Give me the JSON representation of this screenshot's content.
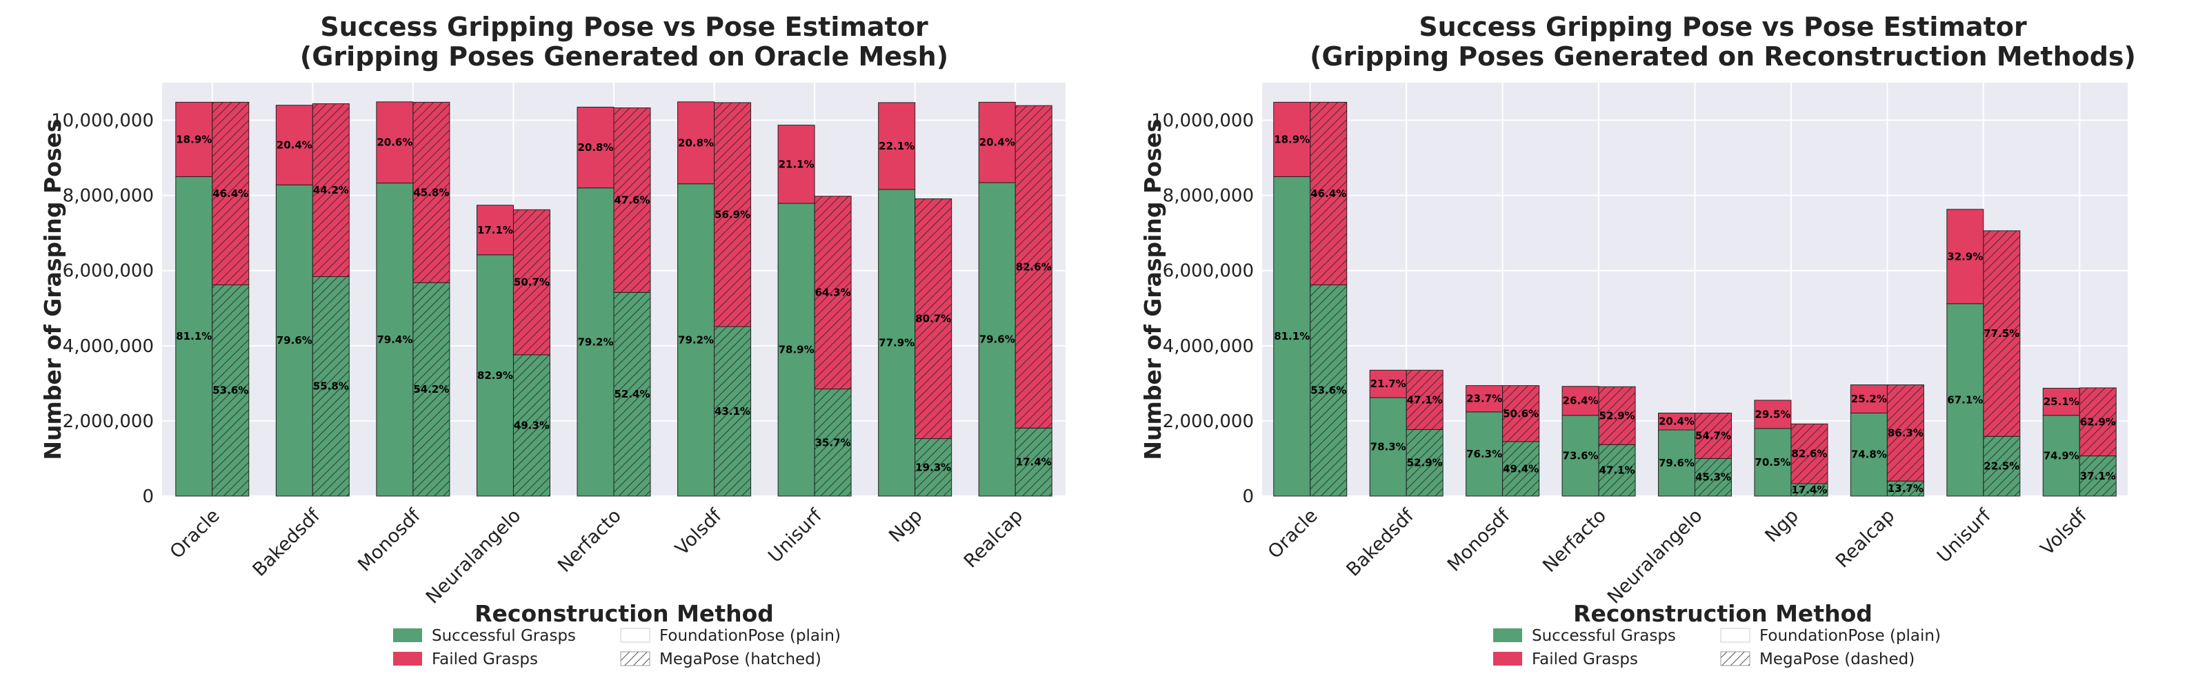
{
  "colors": {
    "success": "#55a074",
    "failed": "#e23e62",
    "plot_bg": "#eaeaf2",
    "grid": "#ffffff",
    "edge": "#222222"
  },
  "chart_data": [
    {
      "type": "bar",
      "stacked": true,
      "title_line1": "Success Gripping Pose vs Pose Estimator",
      "title_line2": "(Gripping Poses Generated on Oracle Mesh)",
      "ylabel": "Number of Grasping Poses",
      "ylim": [
        0,
        11000000
      ],
      "yticks": [
        0,
        2000000,
        4000000,
        6000000,
        8000000,
        10000000
      ],
      "ytick_labels": [
        "0",
        "2,000,000",
        "4,000,000",
        "6,000,000",
        "8,000,000",
        "10,000,000"
      ],
      "grid": true,
      "categories": [
        "Oracle",
        "Bakedsdf",
        "Monosdf",
        "Neuralangelo",
        "Nerfacto",
        "Volsdf",
        "Unisurf",
        "Ngp",
        "Realcap"
      ],
      "foundationpose": {
        "success": [
          8500000,
          8280000,
          8330000,
          6420000,
          8200000,
          8310000,
          7790000,
          8160000,
          8340000
        ],
        "failed": [
          1980000,
          2120000,
          2160000,
          1320000,
          2150000,
          2180000,
          2080000,
          2310000,
          2140000
        ],
        "success_pct": [
          "81.1%",
          "79.6%",
          "79.4%",
          "82.9%",
          "79.2%",
          "79.2%",
          "78.9%",
          "77.9%",
          "79.6%"
        ],
        "failed_pct": [
          "18.9%",
          "20.4%",
          "20.6%",
          "17.1%",
          "20.8%",
          "20.8%",
          "21.1%",
          "22.1%",
          "20.4%"
        ]
      },
      "megapose": {
        "success": [
          5620000,
          5840000,
          5680000,
          3760000,
          5420000,
          4510000,
          2850000,
          1530000,
          1810000
        ],
        "failed": [
          4860000,
          4600000,
          4800000,
          3860000,
          4910000,
          5960000,
          5130000,
          6380000,
          8580000
        ],
        "success_pct": [
          "53.6%",
          "55.8%",
          "54.2%",
          "49.3%",
          "52.4%",
          "43.1%",
          "35.7%",
          "19.3%",
          "17.4%"
        ],
        "failed_pct": [
          "46.4%",
          "44.2%",
          "45.8%",
          "50.7%",
          "47.6%",
          "56.9%",
          "64.3%",
          "80.7%",
          "82.6%"
        ]
      },
      "legend": {
        "title": "Reconstruction Method",
        "success_label": "Successful Grasps",
        "failed_label": "Failed Grasps",
        "plain_label": "FoundationPose (plain)",
        "hatched_label": "MegaPose (hatched)"
      }
    },
    {
      "type": "bar",
      "stacked": true,
      "title_line1": "Success Gripping Pose vs Pose Estimator",
      "title_line2": "(Gripping Poses Generated on Reconstruction Methods)",
      "ylabel": "Number of Grasping Poses",
      "ylim": [
        0,
        11000000
      ],
      "yticks": [
        0,
        2000000,
        4000000,
        6000000,
        8000000,
        10000000
      ],
      "ytick_labels": [
        "0",
        "2,000,000",
        "4,000,000",
        "6,000,000",
        "8,000,000",
        "10,000,000"
      ],
      "grid": true,
      "categories": [
        "Oracle",
        "Bakedsdf",
        "Monosdf",
        "Nerfacto",
        "Neuralangelo",
        "Ngp",
        "Realcap",
        "Unisurf",
        "Volsdf"
      ],
      "foundationpose": {
        "success": [
          8500000,
          2620000,
          2240000,
          2150000,
          1760000,
          1800000,
          2210000,
          5120000,
          2150000
        ],
        "failed": [
          1980000,
          730000,
          700000,
          770000,
          450000,
          750000,
          750000,
          2510000,
          720000
        ],
        "success_pct": [
          "81.1%",
          "78.3%",
          "76.3%",
          "73.6%",
          "79.6%",
          "70.5%",
          "74.8%",
          "67.1%",
          "74.9%"
        ],
        "failed_pct": [
          "18.9%",
          "21.7%",
          "23.7%",
          "26.4%",
          "20.4%",
          "29.5%",
          "25.2%",
          "32.9%",
          "25.1%"
        ]
      },
      "megapose": {
        "success": [
          5620000,
          1770000,
          1450000,
          1370000,
          1000000,
          330000,
          400000,
          1590000,
          1070000
        ],
        "failed": [
          4860000,
          1580000,
          1490000,
          1540000,
          1210000,
          1590000,
          2560000,
          5470000,
          1810000
        ],
        "success_pct": [
          "53.6%",
          "52.9%",
          "49.4%",
          "47.1%",
          "45.3%",
          "17.4%",
          "13.7%",
          "22.5%",
          "37.1%"
        ],
        "failed_pct": [
          "46.4%",
          "47.1%",
          "50.6%",
          "52.9%",
          "54.7%",
          "82.6%",
          "86.3%",
          "77.5%",
          "62.9%"
        ]
      },
      "legend": {
        "title": "Reconstruction Method",
        "success_label": "Successful Grasps",
        "failed_label": "Failed Grasps",
        "plain_label": "FoundationPose (plain)",
        "hatched_label": "MegaPose (dashed)"
      }
    }
  ]
}
